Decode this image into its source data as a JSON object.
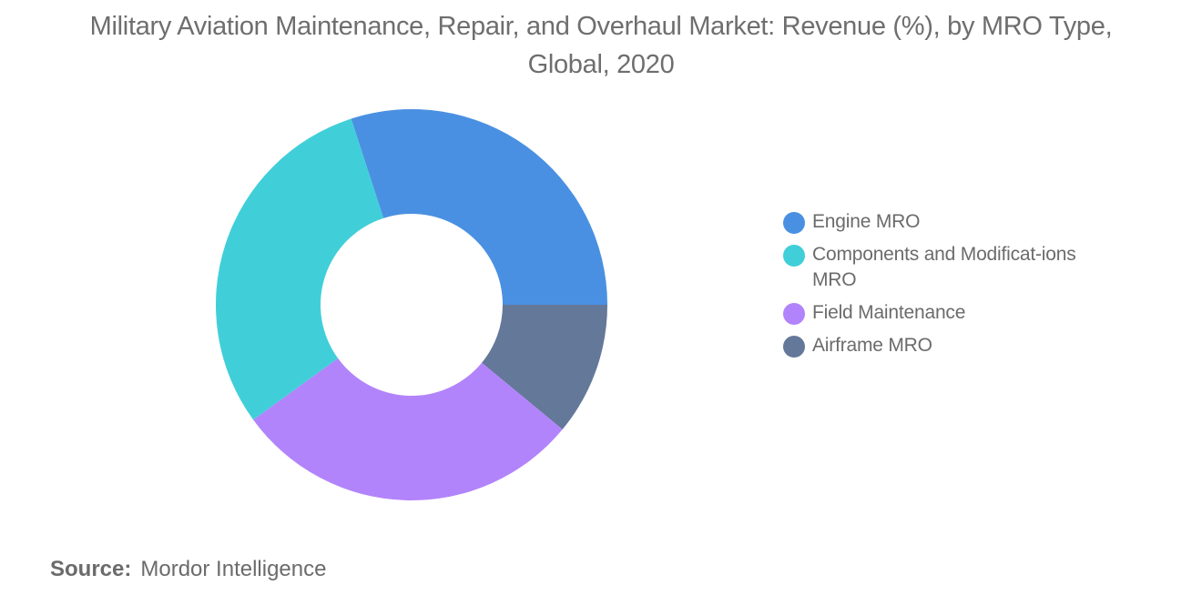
{
  "chart_data": {
    "type": "pie",
    "title": "Military Aviation Maintenance, Repair, and Overhaul Market: Revenue (%), by MRO Type, Global, 2020",
    "donut": true,
    "legend_position": "right",
    "start_angle_note": "clockwise",
    "slices": [
      {
        "label": "Engine MRO",
        "value": 30,
        "color": "#4a90e2"
      },
      {
        "label": "Airframe MRO",
        "value": 11,
        "color": "#647899"
      },
      {
        "label": "Field Maintenance",
        "value": 29,
        "color": "#b284fb"
      },
      {
        "label": "Components and Modificat-ions MRO",
        "value": 30,
        "color": "#40cfd9"
      }
    ]
  },
  "legend": {
    "items": [
      {
        "label": "Engine MRO",
        "color": "#4a90e2"
      },
      {
        "label": "Components and Modificat-ions MRO",
        "color": "#40cfd9"
      },
      {
        "label": "Field Maintenance",
        "color": "#b284fb"
      },
      {
        "label": "Airframe MRO",
        "color": "#647899"
      }
    ]
  },
  "source": {
    "key": "Source:",
    "value": "Mordor Intelligence"
  }
}
